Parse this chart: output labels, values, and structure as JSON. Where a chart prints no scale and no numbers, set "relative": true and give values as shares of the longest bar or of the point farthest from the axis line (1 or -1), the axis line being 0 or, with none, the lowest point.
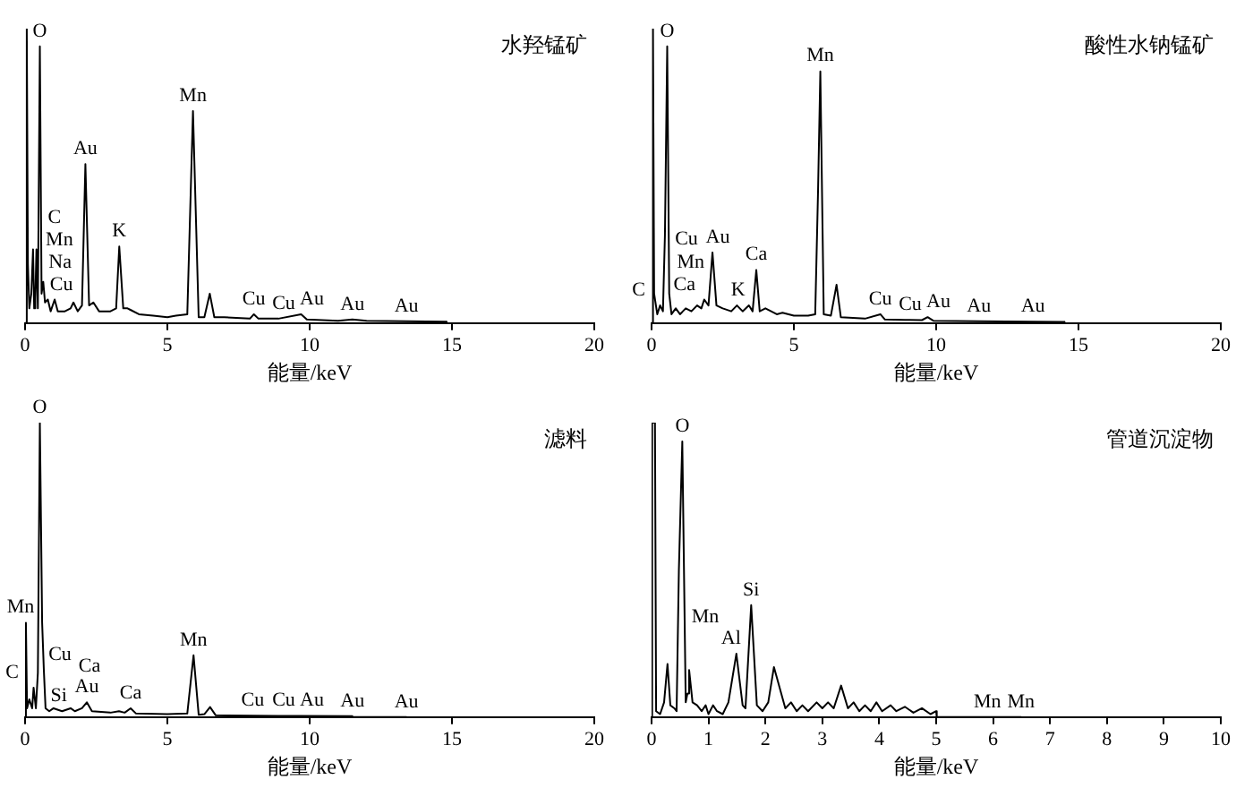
{
  "chart_data": [
    {
      "type": "line",
      "relative": true,
      "title": "水羟锰矿",
      "xlabel": "能量/keV",
      "xlim": [
        0,
        20
      ],
      "xticks": [
        0,
        5,
        10,
        15,
        20
      ],
      "color": "#000000",
      "x": [
        0,
        0.06,
        0.1,
        0.15,
        0.22,
        0.28,
        0.32,
        0.36,
        0.4,
        0.45,
        0.52,
        0.58,
        0.64,
        0.7,
        0.8,
        0.9,
        1.04,
        1.15,
        1.4,
        1.6,
        1.7,
        1.85,
        2.0,
        2.12,
        2.25,
        2.4,
        2.6,
        3.0,
        3.2,
        3.31,
        3.45,
        3.6,
        3.7,
        4.0,
        4.5,
        5.0,
        5.3,
        5.7,
        5.9,
        6.1,
        6.3,
        6.49,
        6.65,
        7.0,
        7.9,
        8.04,
        8.2,
        8.9,
        9.7,
        9.9,
        11,
        11.5,
        12,
        13.4,
        14.8,
        14.81
      ],
      "values": [
        0,
        1.0,
        0.2,
        0.05,
        0.1,
        0.25,
        0.05,
        0.08,
        0.25,
        0.05,
        0.94,
        0.1,
        0.14,
        0.07,
        0.08,
        0.04,
        0.08,
        0.04,
        0.04,
        0.05,
        0.07,
        0.04,
        0.06,
        0.54,
        0.06,
        0.07,
        0.04,
        0.04,
        0.05,
        0.26,
        0.05,
        0.05,
        0.045,
        0.03,
        0.025,
        0.02,
        0.025,
        0.03,
        0.72,
        0.02,
        0.02,
        0.1,
        0.02,
        0.02,
        0.015,
        0.03,
        0.015,
        0.015,
        0.03,
        0.012,
        0.008,
        0.012,
        0.008,
        0.006,
        0.005,
        0
      ],
      "annotations": [
        {
          "text": "O",
          "x": 0.52,
          "y": 0.94
        },
        {
          "text": "Cu",
          "x": 0.9,
          "y": 0.04
        },
        {
          "text": "Na",
          "x": 1.04,
          "y": 0.08
        },
        {
          "text": "Mn",
          "x": 0.64,
          "y": 0.14
        },
        {
          "text": "C",
          "x": 0.28,
          "y": 0.25
        },
        {
          "text": "Au",
          "x": 2.12,
          "y": 0.54
        },
        {
          "text": "K",
          "x": 3.31,
          "y": 0.26
        },
        {
          "text": "Mn",
          "x": 5.9,
          "y": 0.72
        },
        {
          "text": "Cu",
          "x": 8.04,
          "y": 0.03
        },
        {
          "text": "Cu",
          "x": 8.9,
          "y": 0.015
        },
        {
          "text": "Au",
          "x": 9.7,
          "y": 0.03
        },
        {
          "text": "Au",
          "x": 11.5,
          "y": 0.012
        },
        {
          "text": "Au",
          "x": 13.4,
          "y": 0.006
        }
      ]
    },
    {
      "type": "line",
      "relative": true,
      "title": "酸性水钠锰矿",
      "xlabel": "能量/keV",
      "xlim": [
        0,
        20
      ],
      "xticks": [
        0,
        5,
        10,
        15,
        20
      ],
      "color": "#000000",
      "x": [
        0,
        0.05,
        0.09,
        0.2,
        0.3,
        0.4,
        0.47,
        0.55,
        0.62,
        0.7,
        0.85,
        1.0,
        1.2,
        1.4,
        1.6,
        1.75,
        1.85,
        2.0,
        2.14,
        2.28,
        2.5,
        2.8,
        3.0,
        3.2,
        3.42,
        3.55,
        3.68,
        3.8,
        4.0,
        4.4,
        4.6,
        5.0,
        5.5,
        5.75,
        5.85,
        5.93,
        6.05,
        6.3,
        6.5,
        6.65,
        7.5,
        8.04,
        8.2,
        8.9,
        9.5,
        9.7,
        9.9,
        11.5,
        13.4,
        14.5,
        14.51
      ],
      "values": [
        0,
        1.0,
        0.1,
        0.03,
        0.06,
        0.04,
        0.3,
        0.94,
        0.1,
        0.03,
        0.05,
        0.03,
        0.05,
        0.04,
        0.06,
        0.05,
        0.08,
        0.06,
        0.24,
        0.06,
        0.05,
        0.04,
        0.06,
        0.04,
        0.06,
        0.04,
        0.18,
        0.04,
        0.05,
        0.03,
        0.035,
        0.025,
        0.025,
        0.03,
        0.45,
        0.855,
        0.03,
        0.025,
        0.13,
        0.02,
        0.015,
        0.03,
        0.012,
        0.011,
        0.01,
        0.02,
        0.008,
        0.006,
        0.005,
        0.004,
        0
      ],
      "annotations": [
        {
          "text": "O",
          "x": 0.55,
          "y": 0.94
        },
        {
          "text": "Mn",
          "x": 5.93,
          "y": 0.855
        },
        {
          "text": "Ca",
          "x": 0.4,
          "y": 0.04
        },
        {
          "text": "C",
          "x": 0.3,
          "y": 0.06
        },
        {
          "text": "Mn",
          "x": 0.62,
          "y": 0.1
        },
        {
          "text": "Cu",
          "x": 0.85,
          "y": 0.05
        },
        {
          "text": "Au",
          "x": 2.14,
          "y": 0.24
        },
        {
          "text": "K",
          "x": 3.42,
          "y": 0.06
        },
        {
          "text": "Ca",
          "x": 3.68,
          "y": 0.18
        },
        {
          "text": "Cu",
          "x": 8.04,
          "y": 0.03
        },
        {
          "text": "Cu",
          "x": 8.9,
          "y": 0.011
        },
        {
          "text": "Au",
          "x": 9.7,
          "y": 0.02
        },
        {
          "text": "Au",
          "x": 11.5,
          "y": 0.006
        },
        {
          "text": "Au",
          "x": 13.4,
          "y": 0.005
        }
      ]
    },
    {
      "type": "line",
      "relative": true,
      "title": "滤料",
      "xlabel": "能量/keV",
      "xlim": [
        0,
        20
      ],
      "xticks": [
        0,
        5,
        10,
        15,
        20
      ],
      "color": "#000000",
      "x": [
        0,
        0.03,
        0.07,
        0.15,
        0.25,
        0.3,
        0.38,
        0.45,
        0.52,
        0.6,
        0.66,
        0.72,
        0.85,
        1.0,
        1.3,
        1.6,
        1.75,
        2.0,
        2.17,
        2.35,
        3.0,
        3.3,
        3.5,
        3.71,
        3.9,
        5.0,
        5.7,
        5.92,
        6.1,
        6.3,
        6.5,
        6.7,
        8,
        8.9,
        9.7,
        11.5,
        11.51,
        13.4
      ],
      "values": [
        0,
        0.32,
        0.03,
        0.06,
        0.03,
        0.1,
        0.03,
        0.15,
        1.0,
        0.32,
        0.16,
        0.03,
        0.02,
        0.03,
        0.02,
        0.03,
        0.02,
        0.03,
        0.05,
        0.02,
        0.015,
        0.02,
        0.015,
        0.03,
        0.012,
        0.01,
        0.012,
        0.21,
        0.008,
        0.01,
        0.034,
        0.006,
        0.005,
        0.004,
        0.004,
        0.003,
        0,
        0
      ],
      "annotations": [
        {
          "text": "O",
          "x": 0.52,
          "y": 1.0
        },
        {
          "text": "Mn",
          "x": 0.6,
          "y": 0.32
        },
        {
          "text": "Cu",
          "x": 0.66,
          "y": 0.16
        },
        {
          "text": "C",
          "x": 0.3,
          "y": 0.1
        },
        {
          "text": "Au",
          "x": 2.17,
          "y": 0.05
        },
        {
          "text": "Ca",
          "x": 0.38,
          "y": 0.03
        },
        {
          "text": "Si",
          "x": 1.75,
          "y": 0.02
        },
        {
          "text": "Ca",
          "x": 3.71,
          "y": 0.03
        },
        {
          "text": "Mn",
          "x": 5.92,
          "y": 0.21
        },
        {
          "text": "Cu",
          "x": 8,
          "y": 0.005
        },
        {
          "text": "Cu",
          "x": 8.9,
          "y": 0.004
        },
        {
          "text": "Au",
          "x": 9.7,
          "y": 0.004
        },
        {
          "text": "Au",
          "x": 11.5,
          "y": 0.003
        },
        {
          "text": "Au",
          "x": 13.4,
          "y": 0
        }
      ]
    },
    {
      "type": "line",
      "relative": true,
      "title": "管道沉淀物",
      "xlabel": "能量/keV",
      "xlim": [
        0,
        10
      ],
      "xticks": [
        0,
        1,
        2,
        3,
        4,
        5,
        6,
        7,
        8,
        9,
        10
      ],
      "color": "#000000",
      "x": [
        0,
        0.01,
        0.06,
        0.08,
        0.15,
        0.22,
        0.28,
        0.33,
        0.4,
        0.44,
        0.48,
        0.54,
        0.6,
        0.63,
        0.66,
        0.72,
        0.8,
        0.88,
        0.95,
        1.0,
        1.08,
        1.15,
        1.25,
        1.35,
        1.49,
        1.6,
        1.65,
        1.75,
        1.85,
        1.95,
        2.05,
        2.15,
        2.25,
        2.35,
        2.45,
        2.55,
        2.65,
        2.75,
        2.9,
        3.0,
        3.1,
        3.2,
        3.33,
        3.45,
        3.55,
        3.65,
        3.75,
        3.85,
        3.95,
        4.05,
        4.2,
        4.3,
        4.45,
        4.6,
        4.75,
        4.9,
        5.0,
        5.01,
        5.9,
        6.49
      ],
      "values": [
        0,
        1.0,
        1.0,
        0.02,
        0.01,
        0.05,
        0.18,
        0.04,
        0.03,
        0.02,
        0.5,
        0.936,
        0.05,
        0.08,
        0.16,
        0.05,
        0.04,
        0.02,
        0.04,
        0.01,
        0.04,
        0.02,
        0.01,
        0.05,
        0.215,
        0.04,
        0.03,
        0.38,
        0.04,
        0.02,
        0.05,
        0.17,
        0.1,
        0.03,
        0.05,
        0.02,
        0.04,
        0.02,
        0.05,
        0.03,
        0.05,
        0.03,
        0.107,
        0.03,
        0.05,
        0.02,
        0.04,
        0.02,
        0.05,
        0.02,
        0.04,
        0.02,
        0.035,
        0.015,
        0.03,
        0.01,
        0.02,
        0,
        0,
        0
      ],
      "annotations": [
        {
          "text": "O",
          "x": 0.54,
          "y": 0.936
        },
        {
          "text": "Si",
          "x": 1.75,
          "y": 0.38
        },
        {
          "text": "Al",
          "x": 1.49,
          "y": 0.215
        },
        {
          "text": "Mn",
          "x": 0.66,
          "y": 0.16
        },
        {
          "text": "Mn",
          "x": 5.9,
          "y": 0
        },
        {
          "text": "Mn",
          "x": 6.49,
          "y": 0
        }
      ]
    }
  ]
}
